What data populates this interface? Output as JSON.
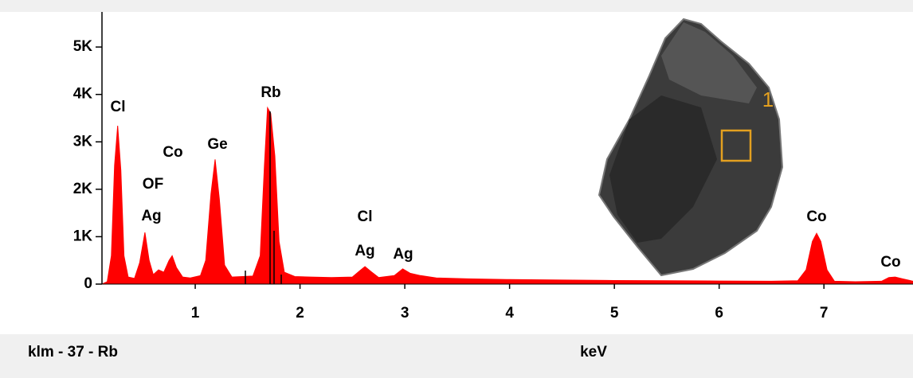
{
  "chart_data": {
    "type": "area",
    "title": "klm - 37 - Rb",
    "x_label": "keV",
    "color": "#ff0000",
    "xlim": [
      0.11,
      7.85
    ],
    "ylim": [
      0,
      5740
    ],
    "xticks": [
      1,
      2,
      3,
      4,
      5,
      6,
      7
    ],
    "yticks": [
      0,
      {
        "value": 1000,
        "label": "1K"
      },
      {
        "value": 2000,
        "label": "2K"
      },
      {
        "value": 3000,
        "label": "3K"
      },
      {
        "value": 4000,
        "label": "4K"
      },
      {
        "value": 5000,
        "label": "5K"
      }
    ],
    "x": [
      0.11,
      0.16,
      0.2,
      0.23,
      0.26,
      0.29,
      0.32,
      0.36,
      0.42,
      0.47,
      0.52,
      0.56,
      0.6,
      0.65,
      0.7,
      0.75,
      0.78,
      0.82,
      0.88,
      0.95,
      1.05,
      1.1,
      1.15,
      1.19,
      1.23,
      1.28,
      1.35,
      1.45,
      1.55,
      1.62,
      1.66,
      1.69,
      1.72,
      1.76,
      1.8,
      1.85,
      1.95,
      2.1,
      2.3,
      2.5,
      2.57,
      2.62,
      2.68,
      2.75,
      2.9,
      2.98,
      3.05,
      3.15,
      3.3,
      3.6,
      4.0,
      4.5,
      5.0,
      5.5,
      6.0,
      6.5,
      6.75,
      6.83,
      6.89,
      6.93,
      6.97,
      7.03,
      7.1,
      7.3,
      7.55,
      7.62,
      7.68,
      7.75,
      7.85
    ],
    "values": [
      0,
      50,
      600,
      2500,
      3340,
      2400,
      600,
      150,
      120,
      450,
      1090,
      500,
      200,
      300,
      250,
      500,
      600,
      350,
      150,
      130,
      180,
      500,
      1900,
      2630,
      1800,
      400,
      150,
      160,
      170,
      600,
      2500,
      3720,
      3600,
      2700,
      900,
      250,
      160,
      150,
      140,
      150,
      280,
      370,
      260,
      140,
      180,
      320,
      230,
      180,
      130,
      110,
      95,
      85,
      75,
      70,
      65,
      60,
      70,
      300,
      900,
      1070,
      900,
      300,
      60,
      50,
      60,
      140,
      150,
      110,
      60
    ],
    "peak_labels": [
      "Cl",
      "OF",
      "Ag",
      "Co",
      "Ge",
      "Rb",
      "Cl",
      "Ag",
      "Ag",
      "Co",
      "Co"
    ],
    "inset_label": "1"
  }
}
